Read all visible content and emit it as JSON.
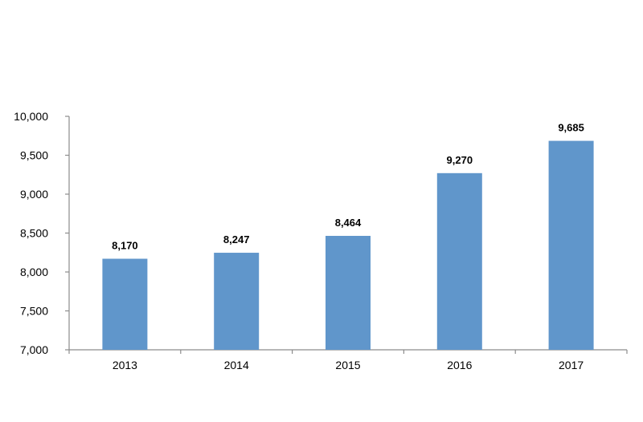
{
  "chart_data": {
    "type": "bar",
    "title": "",
    "xlabel": "",
    "ylabel": "",
    "categories": [
      "2013",
      "2014",
      "2015",
      "2016",
      "2017"
    ],
    "values": [
      8170,
      8247,
      8464,
      9270,
      9685
    ],
    "value_labels": [
      "8,170",
      "8,247",
      "8,464",
      "9,270",
      "9,685"
    ],
    "ylim": [
      7000,
      10000
    ],
    "yticks": [
      7000,
      7500,
      8000,
      8500,
      9000,
      9500,
      10000
    ],
    "ytick_labels": [
      "7,000",
      "7,500",
      "8,000",
      "8,500",
      "9,000",
      "9,500",
      "10,000"
    ],
    "grid": false,
    "legend": "none",
    "bar_color": "#6096cb",
    "axis_color": "#8c8c8c"
  }
}
